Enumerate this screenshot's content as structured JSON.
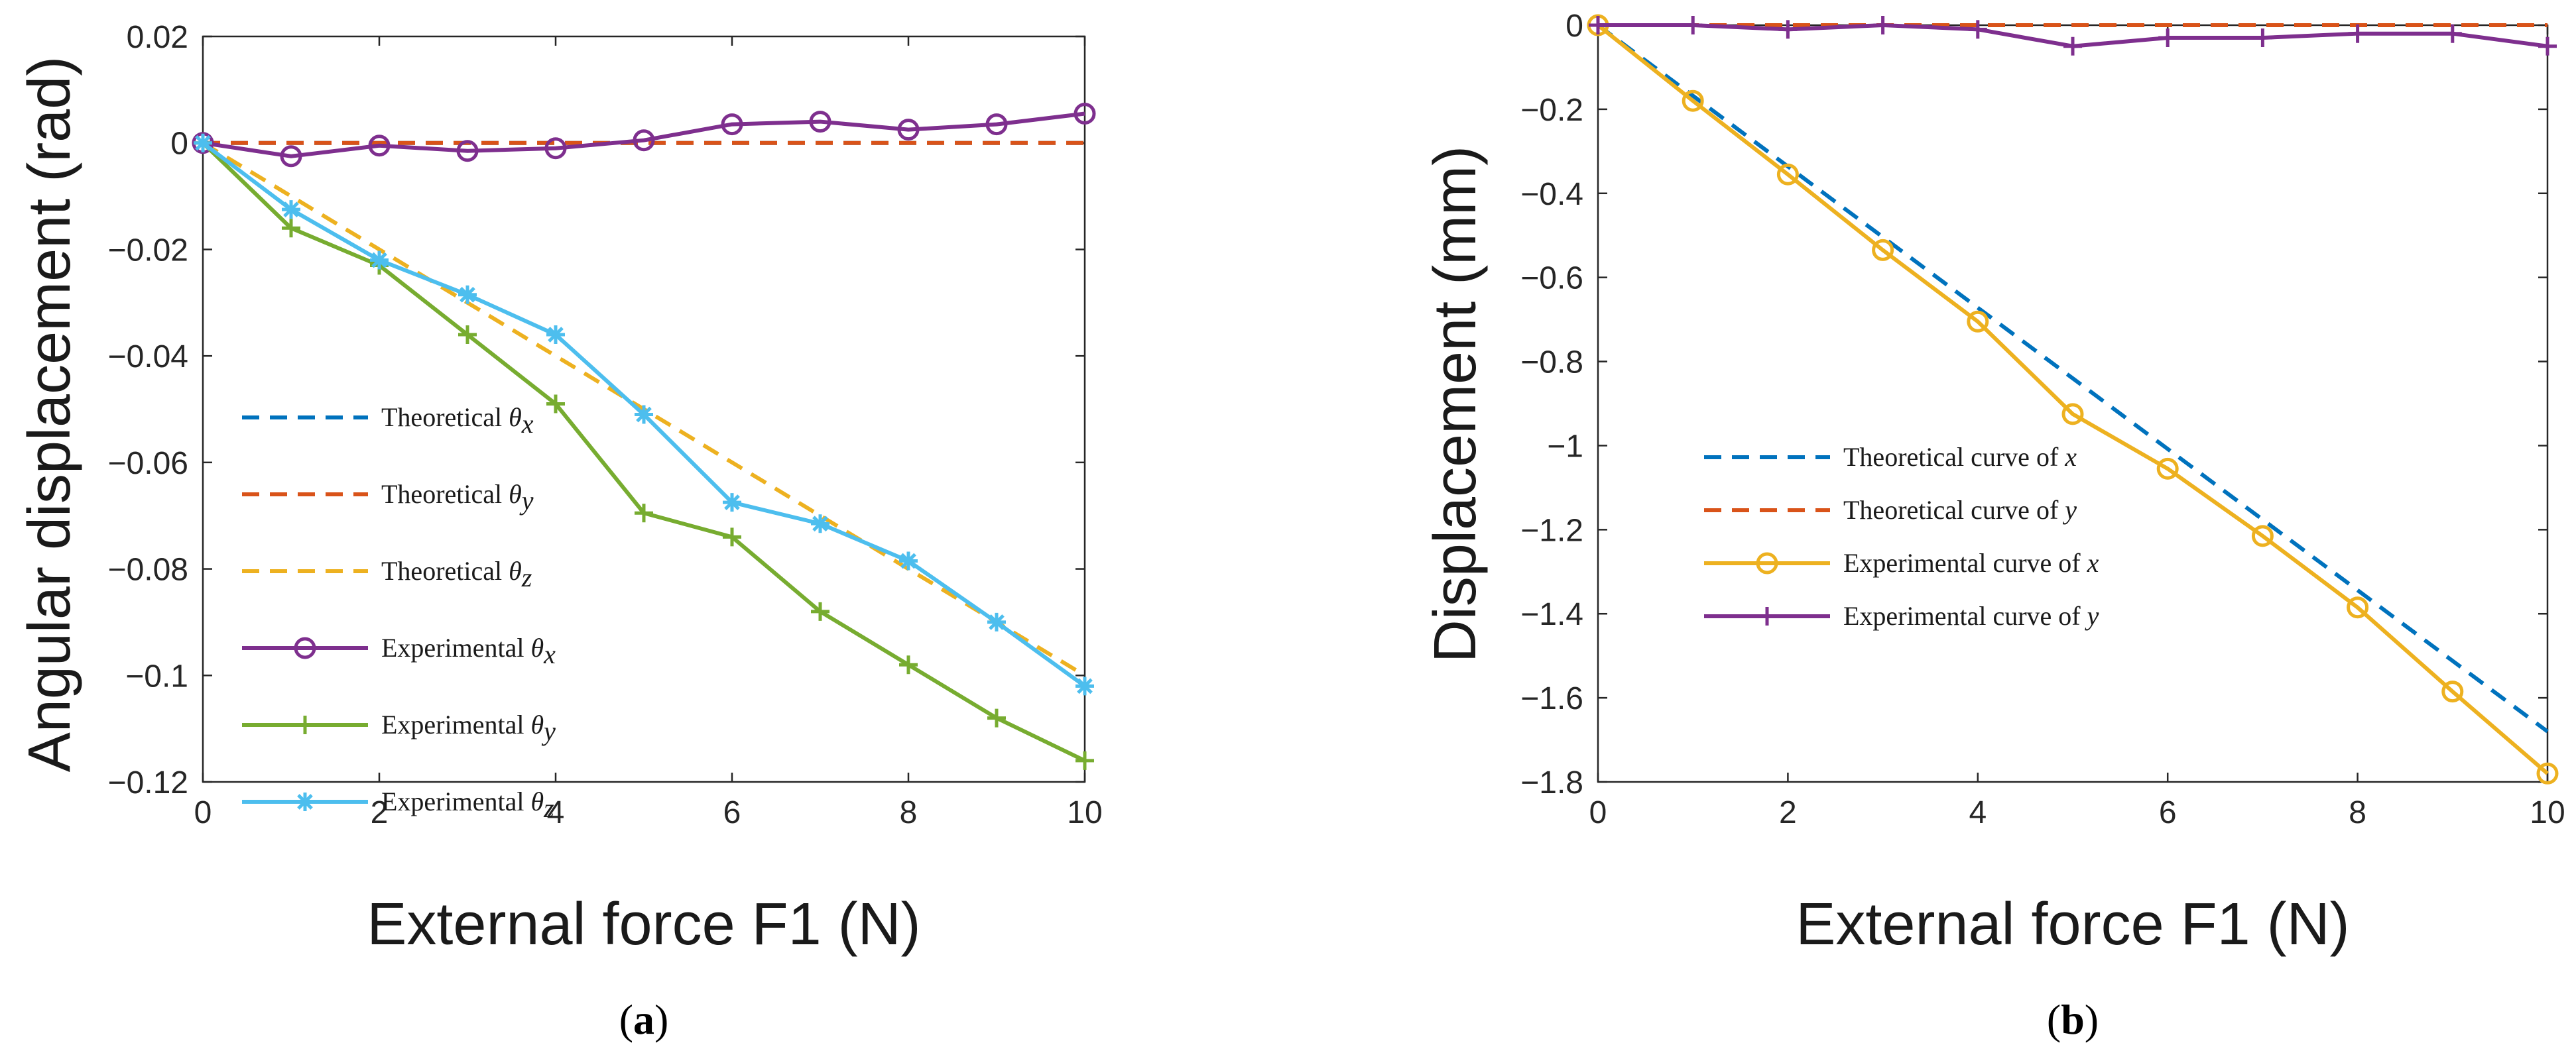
{
  "colors": {
    "blue": "#0072BD",
    "red": "#D95319",
    "yellow": "#EDB120",
    "purple": "#7E2F8E",
    "green": "#77AC30",
    "cyan": "#4DBEEE"
  },
  "chart_data": [
    {
      "type": "line",
      "panel_label": "a",
      "xlabel": "External force F1 (N)",
      "ylabel": "Angular displacement (rad)",
      "xlim": [
        0,
        10
      ],
      "ylim": [
        -0.12,
        0.02
      ],
      "xticks": [
        0,
        2,
        4,
        6,
        8,
        10
      ],
      "xtick_labels": [
        "0",
        "2",
        "4",
        "6",
        "8",
        "10"
      ],
      "yticks": [
        0.02,
        0,
        -0.02,
        -0.04,
        -0.06,
        -0.08,
        -0.1,
        -0.12
      ],
      "ytick_labels": [
        "0.02",
        "0",
        "−0.02",
        "−0.04",
        "−0.06",
        "−0.08",
        "−0.1",
        "−0.12"
      ],
      "legend_position": "bottom-left",
      "x": [
        0,
        1,
        2,
        3,
        4,
        5,
        6,
        7,
        8,
        9,
        10
      ],
      "series": [
        {
          "name": "Theoretical",
          "symbol": "θ",
          "sub": "x",
          "color": "blue",
          "dash": true,
          "marker": "none",
          "values": [
            0,
            0,
            0,
            0,
            0,
            0,
            0,
            0,
            0,
            0,
            0
          ]
        },
        {
          "name": "Theoretical",
          "symbol": "θ",
          "sub": "y",
          "color": "red",
          "dash": true,
          "marker": "none",
          "values": [
            0,
            0,
            0,
            0,
            0,
            0,
            0,
            0,
            0,
            0,
            0
          ]
        },
        {
          "name": "Theoretical",
          "symbol": "θ",
          "sub": "z",
          "color": "yellow",
          "dash": true,
          "marker": "none",
          "values": [
            0,
            -0.01,
            -0.02,
            -0.03,
            -0.04,
            -0.05,
            -0.06,
            -0.07,
            -0.08,
            -0.09,
            -0.1
          ]
        },
        {
          "name": "Experimental",
          "symbol": "θ",
          "sub": "x",
          "color": "purple",
          "dash": false,
          "marker": "circle",
          "values": [
            0,
            -0.0025,
            -0.0005,
            -0.0015,
            -0.001,
            0.0005,
            0.0035,
            0.004,
            0.0025,
            0.0035,
            0.0055
          ]
        },
        {
          "name": "Experimental",
          "symbol": "θ",
          "sub": "y",
          "color": "green",
          "dash": false,
          "marker": "plus",
          "values": [
            0,
            -0.016,
            -0.023,
            -0.036,
            -0.049,
            -0.0695,
            -0.074,
            -0.088,
            -0.098,
            -0.108,
            -0.116
          ]
        },
        {
          "name": "Experimental",
          "symbol": "θ",
          "sub": "z",
          "color": "cyan",
          "dash": false,
          "marker": "star",
          "values": [
            0,
            -0.0125,
            -0.022,
            -0.0285,
            -0.036,
            -0.051,
            -0.0675,
            -0.0715,
            -0.0785,
            -0.09,
            -0.102
          ]
        }
      ]
    },
    {
      "type": "line",
      "panel_label": "b",
      "xlabel": "External force F1 (N)",
      "ylabel": "Displacement (mm)",
      "xlim": [
        0,
        10
      ],
      "ylim": [
        -1.8,
        0
      ],
      "xticks": [
        0,
        2,
        4,
        6,
        8,
        10
      ],
      "xtick_labels": [
        "0",
        "2",
        "4",
        "6",
        "8",
        "10"
      ],
      "yticks": [
        0,
        -0.2,
        -0.4,
        -0.6,
        -0.8,
        -1,
        -1.2,
        -1.4,
        -1.6,
        -1.8
      ],
      "ytick_labels": [
        "0",
        "−0.2",
        "−0.4",
        "−0.6",
        "−0.8",
        "−1",
        "−1.2",
        "−1.4",
        "−1.6",
        "−1.8"
      ],
      "legend_position": "center-left",
      "x": [
        0,
        1,
        2,
        3,
        4,
        5,
        6,
        7,
        8,
        9,
        10
      ],
      "series": [
        {
          "name": "Theoretical curve of",
          "symbol": "x",
          "sub": "",
          "color": "blue",
          "dash": true,
          "marker": "none",
          "values": [
            0,
            -0.168,
            -0.336,
            -0.504,
            -0.672,
            -0.84,
            -1.008,
            -1.176,
            -1.344,
            -1.512,
            -1.68
          ]
        },
        {
          "name": "Theoretical curve of",
          "symbol": "y",
          "sub": "",
          "color": "red",
          "dash": true,
          "marker": "none",
          "values": [
            0,
            0,
            0,
            0,
            0,
            0,
            0,
            0,
            0,
            0,
            0
          ]
        },
        {
          "name": "Experimental curve of",
          "symbol": "x",
          "sub": "",
          "color": "yellow",
          "dash": false,
          "marker": "circle",
          "values": [
            0,
            -0.18,
            -0.355,
            -0.535,
            -0.705,
            -0.925,
            -1.055,
            -1.215,
            -1.385,
            -1.585,
            -1.78
          ]
        },
        {
          "name": "Experimental curve of",
          "symbol": "y",
          "sub": "",
          "color": "purple",
          "dash": false,
          "marker": "plus",
          "values": [
            0,
            0,
            -0.01,
            0,
            -0.01,
            -0.05,
            -0.03,
            -0.03,
            -0.02,
            -0.02,
            -0.05
          ]
        }
      ]
    }
  ]
}
